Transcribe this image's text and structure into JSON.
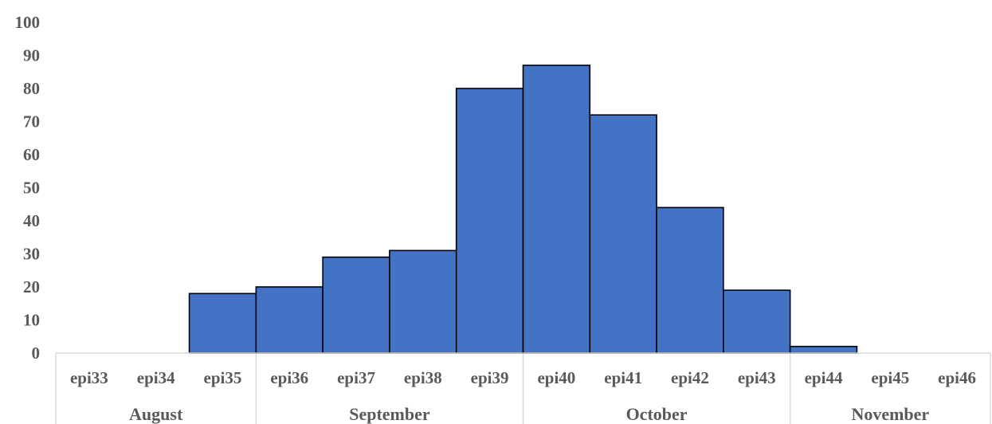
{
  "chart_data": {
    "type": "bar",
    "categories": [
      "epi33",
      "epi34",
      "epi35",
      "epi36",
      "epi37",
      "epi38",
      "epi39",
      "epi40",
      "epi41",
      "epi42",
      "epi43",
      "epi44",
      "epi45",
      "epi46"
    ],
    "values": [
      0,
      0,
      18,
      20,
      29,
      31,
      80,
      87,
      72,
      44,
      19,
      2,
      0,
      0
    ],
    "groups": [
      {
        "label": "August",
        "start": 0,
        "end": 2
      },
      {
        "label": "September",
        "start": 3,
        "end": 6
      },
      {
        "label": "October",
        "start": 7,
        "end": 10
      },
      {
        "label": "November",
        "start": 11,
        "end": 13
      }
    ],
    "yticks": [
      0,
      10,
      20,
      30,
      40,
      50,
      60,
      70,
      80,
      90,
      100
    ],
    "ylim": [
      0,
      100
    ],
    "grid": false,
    "bar_color": "#4472C4",
    "bar_edge_color": "#000000",
    "axis_color": "#D9D9D9"
  }
}
